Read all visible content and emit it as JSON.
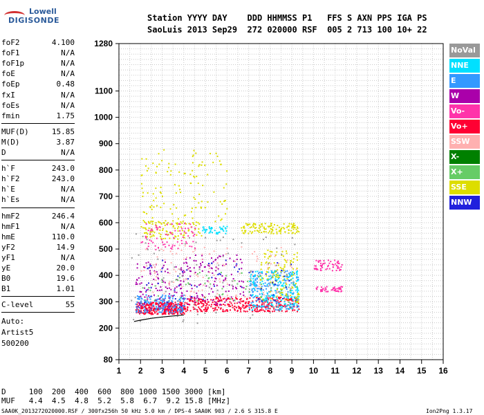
{
  "brand": {
    "line1": "Lowell",
    "line2": "DIGISONDE"
  },
  "header": {
    "row1": "Station YYYY DAY    DDD HHMMSS P1   FFS S AXN PPS IGA PS",
    "row2": "SaoLuis 2013 Sep29  272 020000 RSF  005 2 713 100 10+ 22"
  },
  "params": {
    "group1": [
      {
        "label": "foF2",
        "value": "4.100"
      },
      {
        "label": "foF1",
        "value": "N/A"
      },
      {
        "label": "foF1p",
        "value": "N/A"
      },
      {
        "label": "foE",
        "value": "N/A"
      },
      {
        "label": "foEp",
        "value": "0.48"
      },
      {
        "label": "fxI",
        "value": "N/A"
      },
      {
        "label": "foEs",
        "value": "N/A"
      },
      {
        "label": "fmin",
        "value": "1.75"
      }
    ],
    "group2": [
      {
        "label": "MUF(D)",
        "value": "15.85"
      },
      {
        "label": "M(D)",
        "value": "3.87"
      },
      {
        "label": "D",
        "value": "N/A"
      }
    ],
    "group3": [
      {
        "label": "h`F",
        "value": "243.0"
      },
      {
        "label": "h`F2",
        "value": "243.0"
      },
      {
        "label": "h`E",
        "value": "N/A"
      },
      {
        "label": "h`Es",
        "value": "N/A"
      }
    ],
    "group4": [
      {
        "label": "hmF2",
        "value": "246.4"
      },
      {
        "label": "hmF1",
        "value": "N/A"
      },
      {
        "label": "hmE",
        "value": "110.0"
      },
      {
        "label": "yF2",
        "value": "14.9"
      },
      {
        "label": "yF1",
        "value": "N/A"
      },
      {
        "label": "yE",
        "value": "20.0"
      },
      {
        "label": "B0",
        "value": "19.6"
      },
      {
        "label": "B1",
        "value": "1.01"
      }
    ],
    "group5": [
      {
        "label": "C-level",
        "value": "55"
      }
    ],
    "auto": [
      "Auto:",
      "Artist5",
      "500200"
    ]
  },
  "legend": [
    {
      "name": "NoVal",
      "color": "#999999"
    },
    {
      "name": "NNE",
      "color": "#00e0ff"
    },
    {
      "name": "E",
      "color": "#3399ff"
    },
    {
      "name": "W",
      "color": "#aa00aa"
    },
    {
      "name": "Vo-",
      "color": "#ff33aa"
    },
    {
      "name": "Vo+",
      "color": "#ff0033"
    },
    {
      "name": "SSW",
      "color": "#ffb0b0"
    },
    {
      "name": "X-",
      "color": "#008000"
    },
    {
      "name": "X+",
      "color": "#66cc66"
    },
    {
      "name": "SSE",
      "color": "#dddd00"
    },
    {
      "name": "NNW",
      "color": "#2020dd"
    }
  ],
  "footer": {
    "d_row": "D     100  200  400  600  800 1000 1500 3000 [km]",
    "muf_row": "MUF   4.4  4.5  4.8  5.2  5.8  6.7  9.2 15.8 [MHz]",
    "bottom_left": "SAA0K_2013272020000.RSF / 300fx256h 50 kHz 5.0 km / DPS-4 SAA0K 903 / 2.6 S 315.8 E",
    "bottom_right": "Ion2Png 1.3.17"
  },
  "chart_data": {
    "type": "scatter",
    "xlim": [
      1,
      16
    ],
    "ylim": [
      80,
      1280
    ],
    "x_ticks": [
      1,
      2,
      3,
      4,
      5,
      6,
      7,
      8,
      9,
      10,
      11,
      12,
      13,
      14,
      15,
      16
    ],
    "y_ticks": [
      80,
      200,
      300,
      400,
      500,
      600,
      700,
      800,
      900,
      1000,
      1100,
      1280
    ],
    "grid": true,
    "legend_position": "right",
    "traced_trace": [
      [
        1.7,
        225
      ],
      [
        2.0,
        230
      ],
      [
        2.5,
        237
      ],
      [
        3.0,
        242
      ],
      [
        3.5,
        246
      ],
      [
        4.0,
        250
      ]
    ],
    "echo_regions": [
      {
        "name": "Vo+",
        "x": [
          1.75,
          4.05
        ],
        "y": [
          255,
          300
        ],
        "n": 320
      },
      {
        "name": "E",
        "x": [
          1.75,
          4.05
        ],
        "y": [
          260,
          330
        ],
        "n": 160
      },
      {
        "name": "W",
        "x": [
          1.75,
          4.05
        ],
        "y": [
          270,
          460
        ],
        "n": 110
      },
      {
        "name": "Vo+",
        "x": [
          4.05,
          9.3
        ],
        "y": [
          265,
          320
        ],
        "n": 360
      },
      {
        "name": "E",
        "x": [
          7.0,
          9.3
        ],
        "y": [
          270,
          420
        ],
        "n": 180
      },
      {
        "name": "NNE",
        "x": [
          7.0,
          9.3
        ],
        "y": [
          270,
          420
        ],
        "n": 180
      },
      {
        "name": "SSE",
        "x": [
          7.5,
          9.3
        ],
        "y": [
          300,
          500
        ],
        "n": 120
      },
      {
        "name": "W",
        "x": [
          4.0,
          6.8
        ],
        "y": [
          290,
          480
        ],
        "n": 120
      },
      {
        "name": "SSE",
        "x": [
          2.0,
          4.8
        ],
        "y": [
          540,
          610
        ],
        "n": 110
      },
      {
        "name": "Vo-",
        "x": [
          2.0,
          4.5
        ],
        "y": [
          500,
          600
        ],
        "n": 80
      },
      {
        "name": "SSE",
        "x": [
          6.6,
          9.3
        ],
        "y": [
          560,
          600
        ],
        "n": 120
      },
      {
        "name": "NNE",
        "x": [
          4.8,
          6.0
        ],
        "y": [
          560,
          590
        ],
        "n": 40
      },
      {
        "name": "SSE",
        "x": [
          2.0,
          6.0
        ],
        "y": [
          600,
          880
        ],
        "n": 120
      },
      {
        "name": "Vo-",
        "x": [
          10.0,
          11.3
        ],
        "y": [
          420,
          460
        ],
        "n": 60
      },
      {
        "name": "Vo-",
        "x": [
          10.1,
          11.3
        ],
        "y": [
          340,
          360
        ],
        "n": 50
      },
      {
        "name": "SSW",
        "x": [
          2.0,
          9.2
        ],
        "y": [
          320,
          520
        ],
        "n": 120
      },
      {
        "name": "X+",
        "x": [
          2.0,
          9.2
        ],
        "y": [
          300,
          420
        ],
        "n": 60
      },
      {
        "name": "NNW",
        "x": [
          2.0,
          9.2
        ],
        "y": [
          300,
          460
        ],
        "n": 60
      },
      {
        "name": "NoVal",
        "x": [
          1.5,
          9.2
        ],
        "y": [
          220,
          560
        ],
        "n": 80
      }
    ]
  }
}
